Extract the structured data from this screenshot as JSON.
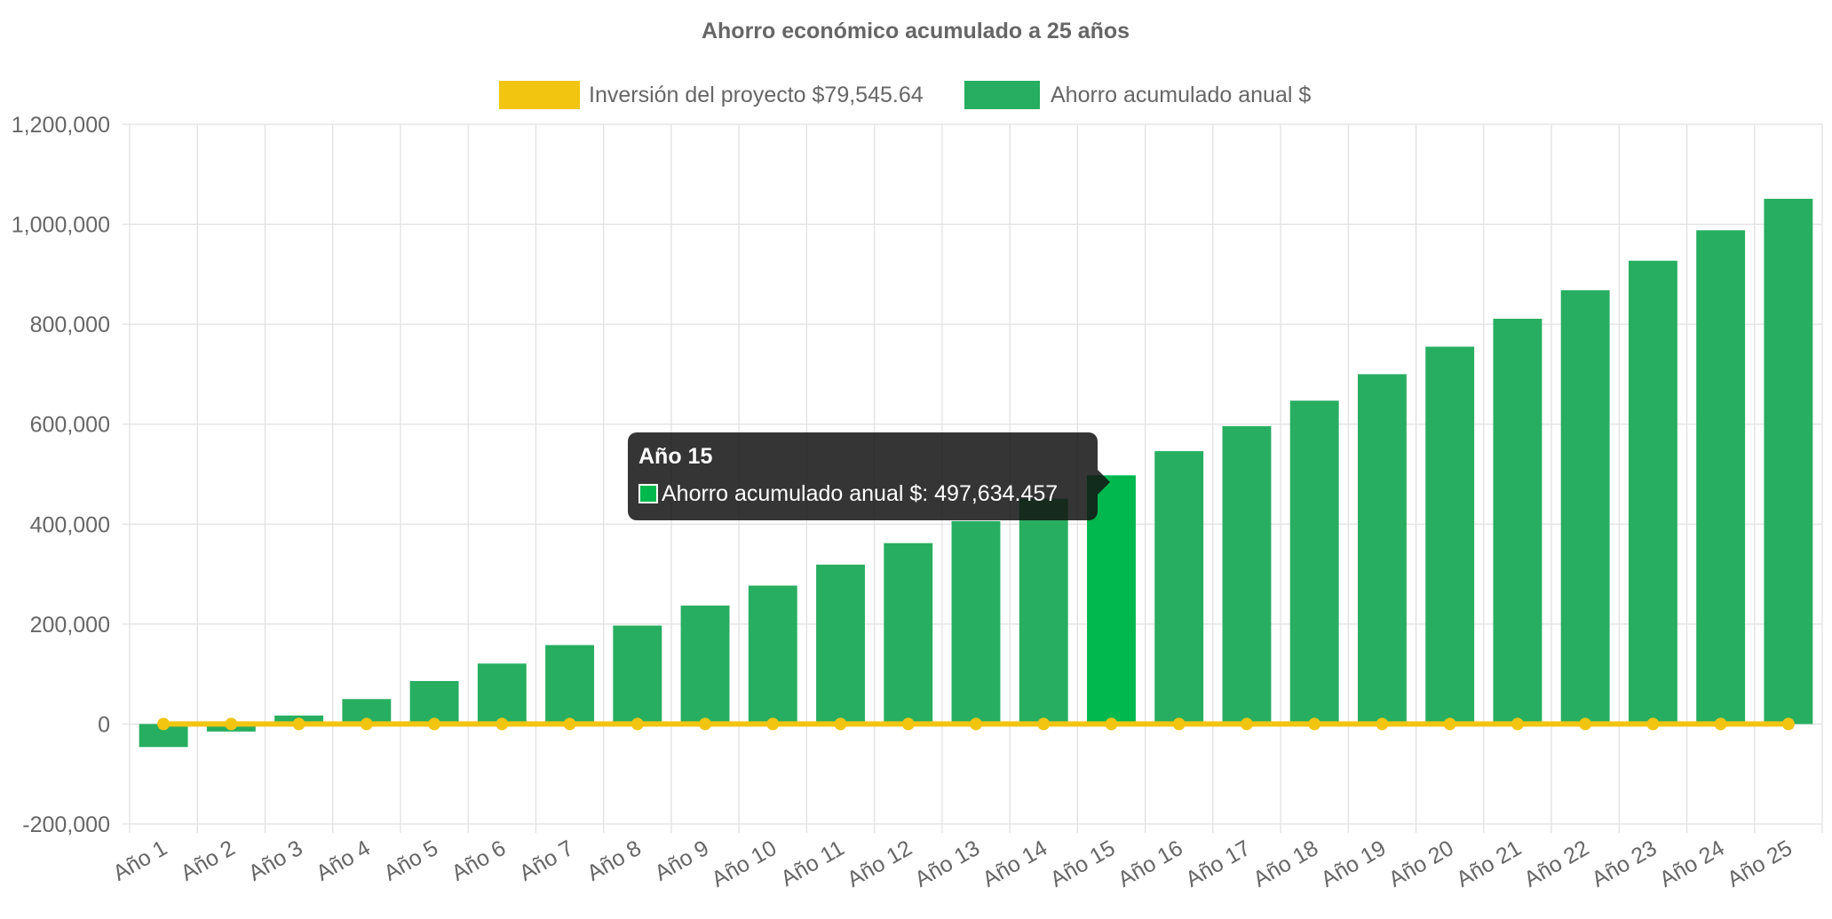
{
  "chart_data": {
    "type": "bar",
    "title": "Ahorro económico acumulado a 25 años",
    "categories": [
      "Año 1",
      "Año 2",
      "Año 3",
      "Año 4",
      "Año 5",
      "Año 6",
      "Año 7",
      "Año 8",
      "Año 9",
      "Año 10",
      "Año 11",
      "Año 12",
      "Año 13",
      "Año 14",
      "Año 15",
      "Año 16",
      "Año 17",
      "Año 18",
      "Año 19",
      "Año 20",
      "Año 21",
      "Año 22",
      "Año 23",
      "Año 24",
      "Año 25"
    ],
    "series": [
      {
        "name": "Inversión del proyecto $79,545.64",
        "type": "line",
        "color": "#f2c511",
        "values": [
          0,
          0,
          0,
          0,
          0,
          0,
          0,
          0,
          0,
          0,
          0,
          0,
          0,
          0,
          0,
          0,
          0,
          0,
          0,
          0,
          0,
          0,
          0,
          0,
          0
        ]
      },
      {
        "name": "Ahorro acumulado anual $",
        "type": "bar",
        "color": "#27ae60",
        "highlight_color": "#00b84e",
        "values": [
          -46000,
          -15000,
          17000,
          50000,
          86000,
          121000,
          158000,
          197000,
          237000,
          277000,
          319000,
          362000,
          406000,
          451000,
          497634.457,
          546000,
          596000,
          647000,
          700000,
          755000,
          811000,
          868000,
          927000,
          988000,
          1051000
        ]
      }
    ],
    "ylim": [
      -200000,
      1200000
    ],
    "yticks": [
      "-200,000",
      "0",
      "200,000",
      "400,000",
      "600,000",
      "800,000",
      "1,000,000",
      "1,200,000"
    ],
    "ytick_values": [
      -200000,
      0,
      200000,
      400000,
      600000,
      800000,
      1000000,
      1200000
    ],
    "grid": true,
    "legend_position": "top-center",
    "tooltip": {
      "category_index": 14,
      "title": "Año 15",
      "label": "Ahorro acumulado anual $: 497,634.457"
    }
  }
}
